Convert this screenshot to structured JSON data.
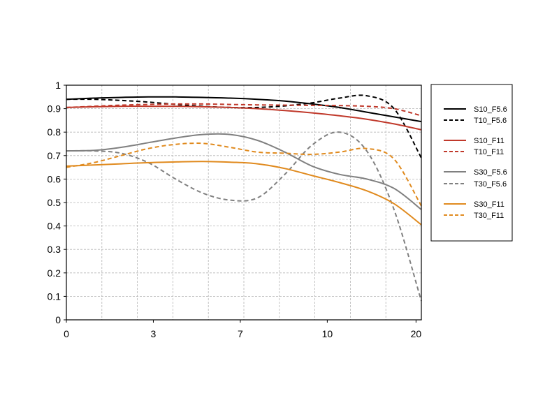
{
  "chart_data": {
    "type": "line",
    "title": "",
    "xlabel": "",
    "ylabel": "",
    "x_ticks": [
      "0",
      "3",
      "7",
      "10",
      "20"
    ],
    "y_ticks": [
      "0",
      "0.1",
      "0.2",
      "0.3",
      "0.4",
      "0.5",
      "0.6",
      "0.7",
      "0.8",
      "0.9",
      "1"
    ],
    "ylim": [
      0,
      1
    ],
    "grid": true,
    "legend_position": "right",
    "series": [
      {
        "name": "S10_F5.6",
        "color": "#000000",
        "dash": "solid",
        "points": [
          [
            0,
            0.94
          ],
          [
            1,
            0.945
          ],
          [
            2,
            0.948
          ],
          [
            3,
            0.95
          ],
          [
            4,
            0.95
          ],
          [
            5,
            0.948
          ],
          [
            6,
            0.945
          ],
          [
            7,
            0.94
          ],
          [
            8,
            0.932
          ],
          [
            9,
            0.92
          ],
          [
            10,
            0.905
          ],
          [
            11,
            0.885
          ],
          [
            12,
            0.865
          ],
          [
            13,
            0.845
          ]
        ]
      },
      {
        "name": "T10_F5.6",
        "color": "#000000",
        "dash": "dashed",
        "points": [
          [
            0,
            0.94
          ],
          [
            1,
            0.94
          ],
          [
            2,
            0.935
          ],
          [
            3,
            0.928
          ],
          [
            4,
            0.918
          ],
          [
            5,
            0.91
          ],
          [
            6,
            0.905
          ],
          [
            7,
            0.905
          ],
          [
            8,
            0.912
          ],
          [
            9,
            0.925
          ],
          [
            10,
            0.945
          ],
          [
            11,
            0.955
          ],
          [
            12,
            0.9
          ],
          [
            13,
            0.69
          ]
        ]
      },
      {
        "name": "S10_F11",
        "color": "#c0392b",
        "dash": "solid",
        "points": [
          [
            0,
            0.905
          ],
          [
            1,
            0.908
          ],
          [
            2,
            0.91
          ],
          [
            3,
            0.91
          ],
          [
            4,
            0.91
          ],
          [
            5,
            0.908
          ],
          [
            6,
            0.905
          ],
          [
            7,
            0.9
          ],
          [
            8,
            0.892
          ],
          [
            9,
            0.882
          ],
          [
            10,
            0.87
          ],
          [
            11,
            0.855
          ],
          [
            12,
            0.835
          ],
          [
            13,
            0.81
          ]
        ]
      },
      {
        "name": "T10_F11",
        "color": "#c0392b",
        "dash": "dashed",
        "points": [
          [
            0,
            0.905
          ],
          [
            1,
            0.91
          ],
          [
            2,
            0.915
          ],
          [
            3,
            0.918
          ],
          [
            4,
            0.92
          ],
          [
            5,
            0.92
          ],
          [
            6,
            0.918
          ],
          [
            7,
            0.916
          ],
          [
            8,
            0.915
          ],
          [
            9,
            0.914
          ],
          [
            10,
            0.913
          ],
          [
            11,
            0.91
          ],
          [
            12,
            0.9
          ],
          [
            13,
            0.87
          ]
        ]
      },
      {
        "name": "S30_F5.6",
        "color": "#808080",
        "dash": "solid",
        "points": [
          [
            0,
            0.72
          ],
          [
            1,
            0.722
          ],
          [
            2,
            0.735
          ],
          [
            3,
            0.755
          ],
          [
            4,
            0.775
          ],
          [
            5,
            0.79
          ],
          [
            6,
            0.79
          ],
          [
            7,
            0.765
          ],
          [
            8,
            0.715
          ],
          [
            9,
            0.655
          ],
          [
            10,
            0.62
          ],
          [
            11,
            0.6
          ],
          [
            12,
            0.56
          ],
          [
            13,
            0.47
          ]
        ]
      },
      {
        "name": "T30_F5.6",
        "color": "#808080",
        "dash": "dashed",
        "points": [
          [
            0,
            0.72
          ],
          [
            1,
            0.72
          ],
          [
            2,
            0.71
          ],
          [
            3,
            0.67
          ],
          [
            4,
            0.6
          ],
          [
            5,
            0.54
          ],
          [
            6,
            0.51
          ],
          [
            7,
            0.52
          ],
          [
            8,
            0.62
          ],
          [
            9,
            0.745
          ],
          [
            10,
            0.8
          ],
          [
            11,
            0.72
          ],
          [
            12,
            0.47
          ],
          [
            13,
            0.08
          ]
        ]
      },
      {
        "name": "S30_F11",
        "color": "#e08a1e",
        "dash": "solid",
        "points": [
          [
            0,
            0.655
          ],
          [
            1,
            0.66
          ],
          [
            2,
            0.665
          ],
          [
            3,
            0.67
          ],
          [
            4,
            0.673
          ],
          [
            5,
            0.675
          ],
          [
            6,
            0.672
          ],
          [
            7,
            0.665
          ],
          [
            8,
            0.645
          ],
          [
            9,
            0.615
          ],
          [
            10,
            0.585
          ],
          [
            11,
            0.55
          ],
          [
            12,
            0.495
          ],
          [
            13,
            0.405
          ]
        ]
      },
      {
        "name": "T30_F11",
        "color": "#e08a1e",
        "dash": "dashed",
        "points": [
          [
            0,
            0.65
          ],
          [
            1,
            0.67
          ],
          [
            2,
            0.7
          ],
          [
            3,
            0.73
          ],
          [
            4,
            0.748
          ],
          [
            5,
            0.752
          ],
          [
            6,
            0.735
          ],
          [
            7,
            0.715
          ],
          [
            8,
            0.71
          ],
          [
            9,
            0.705
          ],
          [
            10,
            0.715
          ],
          [
            11,
            0.73
          ],
          [
            12,
            0.685
          ],
          [
            13,
            0.485
          ]
        ]
      }
    ]
  }
}
